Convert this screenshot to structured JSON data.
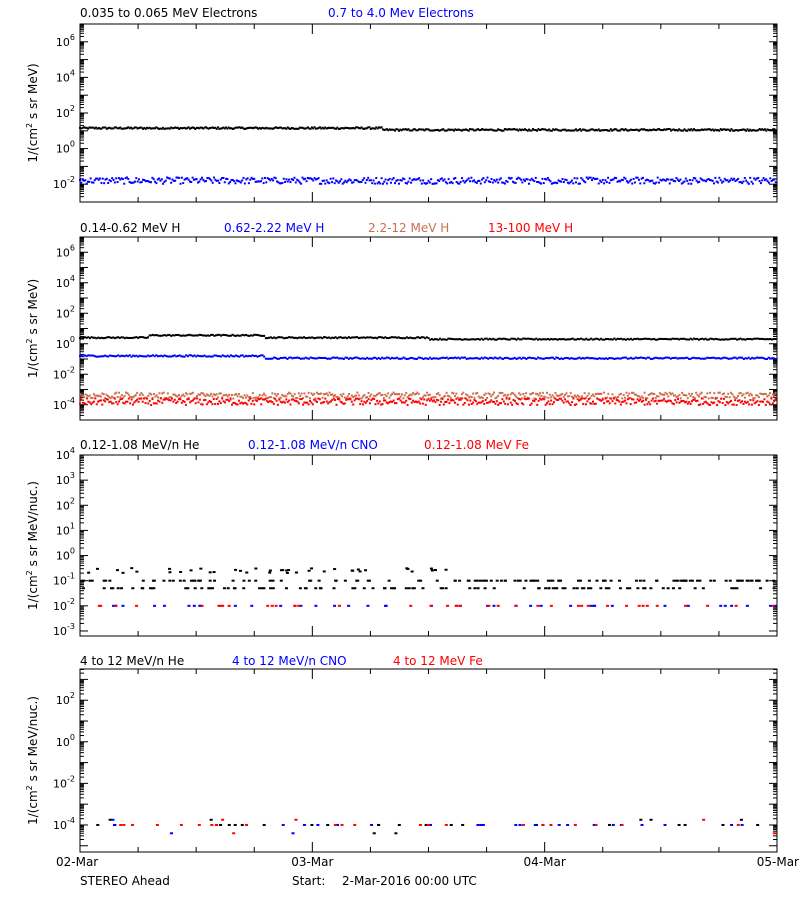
{
  "footer": {
    "spacecraft": "STEREO Ahead",
    "start_label": "Start:",
    "start_value": "2-Mar-2016 00:00 UTC"
  },
  "x_axis": {
    "ticks": [
      "02-Mar",
      "03-Mar",
      "04-Mar",
      "05-Mar"
    ]
  },
  "chart_data": [
    {
      "type": "scatter",
      "log_y": true,
      "ylabel_pre": "1/(cm",
      "ylabel_sup": "2",
      "ylabel_post": " s sr MeV)",
      "ylim_exp": [
        -3,
        7
      ],
      "y_tick_exps": [
        -2,
        0,
        2,
        4,
        6
      ],
      "xlim_days": [
        0,
        3
      ],
      "series": [
        {
          "name": "0.035 to 0.065 MeV Electrons",
          "color": "#000000",
          "level_exp": 1.1,
          "spread": 0.05
        },
        {
          "name": "0.7 to 4.0 Mev Electrons",
          "color": "#0000ff",
          "level_exp": -1.8,
          "spread": 0.18
        }
      ]
    },
    {
      "type": "scatter",
      "log_y": true,
      "ylabel_pre": "1/(cm",
      "ylabel_sup": "2",
      "ylabel_post": " s sr MeV)",
      "ylim_exp": [
        -5,
        7
      ],
      "y_tick_exps": [
        -4,
        -2,
        0,
        2,
        4,
        6
      ],
      "xlim_days": [
        0,
        3
      ],
      "series": [
        {
          "name": "0.14-0.62 MeV H",
          "color": "#000000",
          "level_exp": 0.4,
          "spread": 0.05
        },
        {
          "name": "0.62-2.22 MeV H",
          "color": "#0000ff",
          "level_exp": -0.9,
          "spread": 0.05
        },
        {
          "name": "2.2-12 MeV H",
          "color": "#cc6e4e",
          "level_exp": -3.4,
          "spread": 0.2
        },
        {
          "name": "13-100 MeV H",
          "color": "#ff0000",
          "level_exp": -3.8,
          "spread": 0.22
        }
      ]
    },
    {
      "type": "scatter",
      "log_y": true,
      "ylabel_pre": "1/(cm",
      "ylabel_sup": "2",
      "ylabel_post": " s sr MeV/nuc.)",
      "ylim_exp": [
        -3.2,
        4
      ],
      "y_tick_exps": [
        -3,
        -2,
        -1,
        0,
        1,
        2,
        3,
        4
      ],
      "xlim_days": [
        0,
        3
      ],
      "series": [
        {
          "name": "0.12-1.08 MeV/n He",
          "color": "#000000",
          "level_exp": -1.1,
          "spread": 0.3
        },
        {
          "name": "0.12-1.08 MeV/n CNO",
          "color": "#0000ff",
          "level_exp": -2.0,
          "spread": 0.0
        },
        {
          "name": "0.12-1.08 MeV Fe",
          "color": "#ff0000",
          "level_exp": -2.0,
          "spread": 0.0
        }
      ]
    },
    {
      "type": "scatter",
      "log_y": true,
      "ylabel_pre": "1/(cm",
      "ylabel_sup": "2",
      "ylabel_post": " s sr MeV/nuc.)",
      "ylim_exp": [
        -5.3,
        3.5
      ],
      "y_tick_exps": [
        -4,
        -2,
        0,
        2
      ],
      "xlim_days": [
        0,
        3
      ],
      "series": [
        {
          "name": "4 to 12 MeV/n He",
          "color": "#000000",
          "level_exp": -4.0,
          "spread": 0.0
        },
        {
          "name": "4 to 12 MeV/n CNO",
          "color": "#0000ff",
          "level_exp": -4.0,
          "spread": 0.0
        },
        {
          "name": "4 to 12 MeV Fe",
          "color": "#ff0000",
          "level_exp": -4.0,
          "spread": 0.0
        }
      ]
    }
  ]
}
